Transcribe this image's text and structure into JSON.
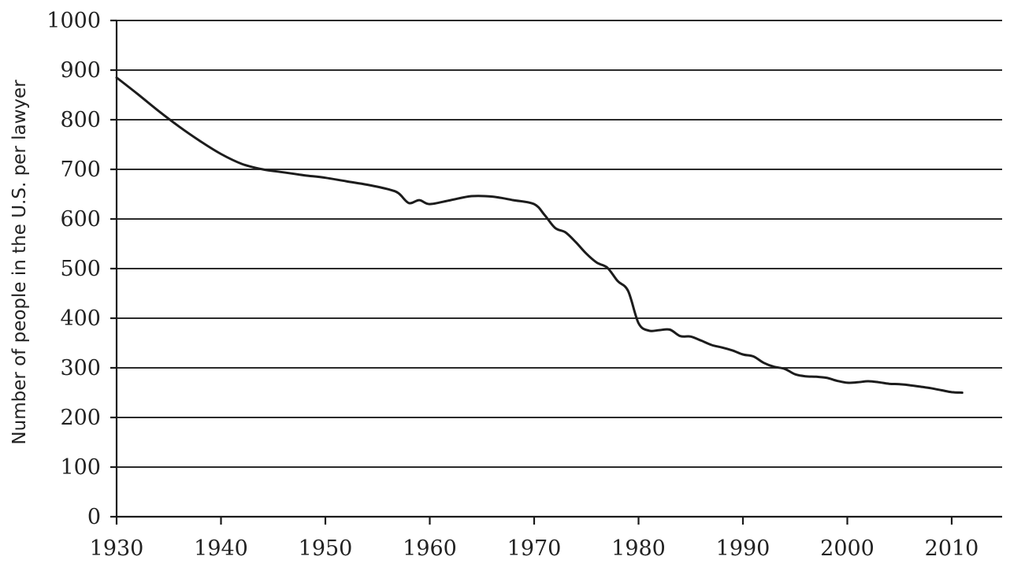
{
  "chart_data": {
    "type": "line",
    "title": "",
    "xlabel": "",
    "ylabel": "Number of people in the U.S. per lawyer",
    "xlim": [
      1930,
      2015
    ],
    "ylim": [
      0,
      1000
    ],
    "grid": true,
    "x_ticks": [
      "1930",
      "1940",
      "1950",
      "1960",
      "1970",
      "1980",
      "1990",
      "2000",
      "2010"
    ],
    "y_ticks": [
      "0",
      "100",
      "200",
      "300",
      "400",
      "500",
      "600",
      "700",
      "800",
      "900",
      "1000"
    ],
    "series": [
      {
        "color": "#1c1c1c",
        "x": [
          1930,
          1932,
          1934,
          1936,
          1938,
          1940,
          1942,
          1944,
          1946,
          1948,
          1950,
          1952,
          1954,
          1956,
          1957,
          1958,
          1959,
          1960,
          1962,
          1964,
          1966,
          1968,
          1970,
          1971,
          1972,
          1973,
          1974,
          1975,
          1976,
          1977,
          1978,
          1979,
          1980,
          1981,
          1982,
          1983,
          1984,
          1985,
          1986,
          1987,
          1988,
          1989,
          1990,
          1991,
          1992,
          1993,
          1994,
          1995,
          1996,
          1997,
          1998,
          1999,
          2000,
          2001,
          2002,
          2003,
          2004,
          2005,
          2006,
          2007,
          2008,
          2009,
          2010,
          2011
        ],
        "y": [
          885,
          852,
          818,
          786,
          757,
          731,
          711,
          700,
          694,
          688,
          683,
          676,
          669,
          660,
          652,
          632,
          638,
          630,
          638,
          646,
          645,
          638,
          630,
          608,
          582,
          573,
          553,
          530,
          512,
          502,
          475,
          455,
          390,
          375,
          376,
          377,
          364,
          363,
          355,
          346,
          341,
          335,
          327,
          323,
          310,
          302,
          298,
          287,
          283,
          282,
          280,
          274,
          270,
          271,
          273,
          271,
          268,
          267,
          265,
          262,
          259,
          255,
          251,
          250
        ]
      }
    ]
  }
}
